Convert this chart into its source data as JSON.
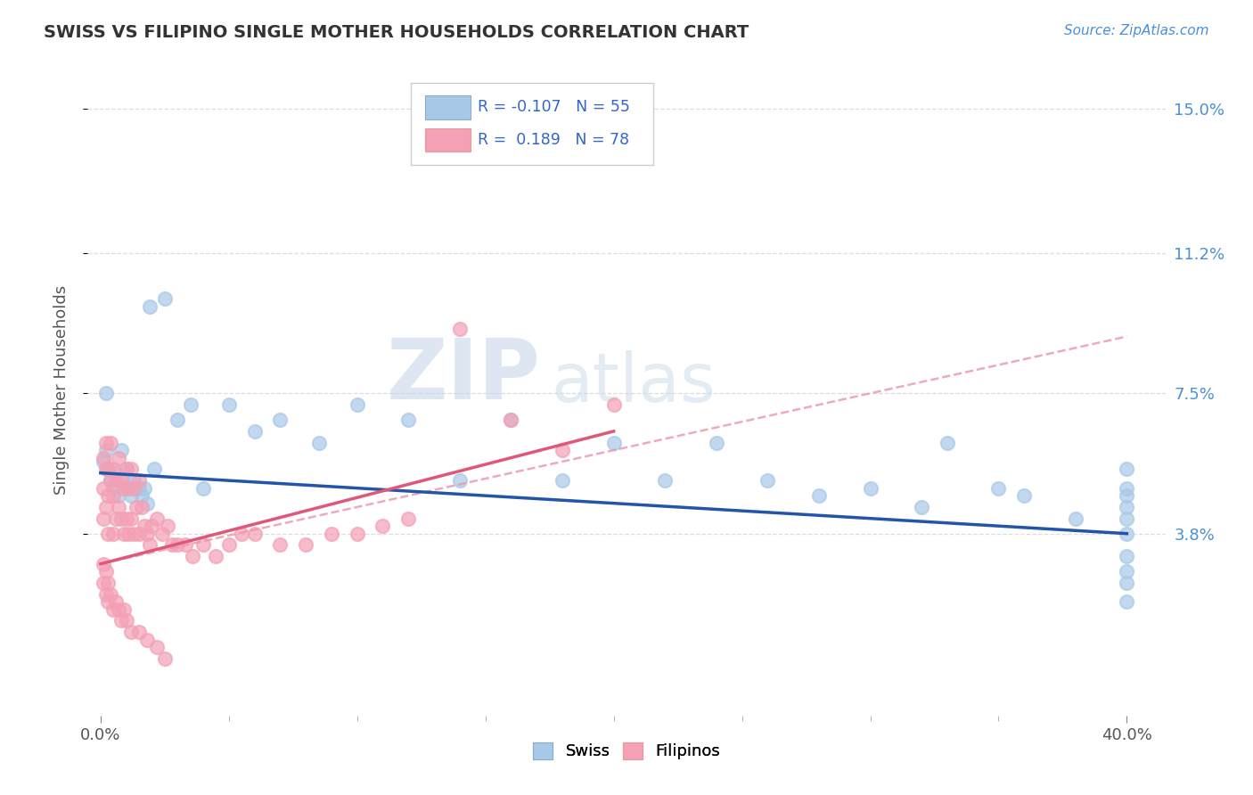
{
  "title": "SWISS VS FILIPINO SINGLE MOTHER HOUSEHOLDS CORRELATION CHART",
  "source": "Source: ZipAtlas.com",
  "ylabel": "Single Mother Households",
  "xlim": [
    -0.005,
    0.415
  ],
  "ylim": [
    -0.01,
    0.162
  ],
  "yticks": [
    0.038,
    0.075,
    0.112,
    0.15
  ],
  "ytick_labels": [
    "3.8%",
    "7.5%",
    "11.2%",
    "15.0%"
  ],
  "xtick_left": 0.0,
  "xtick_right": 0.4,
  "xtick_label_left": "0.0%",
  "xtick_label_right": "40.0%",
  "swiss_color": "#A8C8E8",
  "filipino_color": "#F4A0B5",
  "swiss_line_color": "#2255AA",
  "filipino_line_solid_color": "#E05878",
  "filipino_line_dash_color": "#E896A8",
  "swiss_R": -0.107,
  "swiss_N": 55,
  "filipino_R": 0.189,
  "filipino_N": 78,
  "legend_text_color": "#3366CC",
  "watermark_zip": "ZIP",
  "watermark_atlas": "atlas",
  "background_color": "#FFFFFF",
  "grid_color": "#DDDDDD",
  "swiss_x": [
    0.001,
    0.002,
    0.002,
    0.003,
    0.004,
    0.005,
    0.006,
    0.007,
    0.008,
    0.009,
    0.01,
    0.011,
    0.012,
    0.013,
    0.014,
    0.015,
    0.016,
    0.017,
    0.018,
    0.019,
    0.021,
    0.025,
    0.03,
    0.035,
    0.04,
    0.05,
    0.06,
    0.07,
    0.085,
    0.1,
    0.12,
    0.14,
    0.16,
    0.18,
    0.2,
    0.22,
    0.24,
    0.26,
    0.28,
    0.3,
    0.32,
    0.33,
    0.35,
    0.36,
    0.38,
    0.4,
    0.4,
    0.4,
    0.4,
    0.4,
    0.4,
    0.4,
    0.4,
    0.4,
    0.4
  ],
  "swiss_y": [
    0.057,
    0.075,
    0.06,
    0.055,
    0.052,
    0.05,
    0.054,
    0.048,
    0.06,
    0.052,
    0.055,
    0.05,
    0.048,
    0.052,
    0.05,
    0.05,
    0.048,
    0.05,
    0.046,
    0.098,
    0.055,
    0.1,
    0.068,
    0.072,
    0.05,
    0.072,
    0.065,
    0.068,
    0.062,
    0.072,
    0.068,
    0.052,
    0.068,
    0.052,
    0.062,
    0.052,
    0.062,
    0.052,
    0.048,
    0.05,
    0.045,
    0.062,
    0.05,
    0.048,
    0.042,
    0.02,
    0.025,
    0.028,
    0.032,
    0.038,
    0.042,
    0.045,
    0.048,
    0.05,
    0.055
  ],
  "filipino_x": [
    0.001,
    0.001,
    0.001,
    0.002,
    0.002,
    0.002,
    0.003,
    0.003,
    0.003,
    0.004,
    0.004,
    0.005,
    0.005,
    0.005,
    0.006,
    0.006,
    0.007,
    0.007,
    0.008,
    0.008,
    0.009,
    0.009,
    0.01,
    0.01,
    0.011,
    0.011,
    0.012,
    0.012,
    0.013,
    0.013,
    0.014,
    0.015,
    0.015,
    0.016,
    0.017,
    0.018,
    0.019,
    0.02,
    0.022,
    0.024,
    0.026,
    0.028,
    0.03,
    0.033,
    0.036,
    0.04,
    0.045,
    0.05,
    0.055,
    0.06,
    0.07,
    0.08,
    0.09,
    0.1,
    0.11,
    0.12,
    0.14,
    0.16,
    0.18,
    0.2,
    0.001,
    0.001,
    0.002,
    0.002,
    0.003,
    0.003,
    0.004,
    0.005,
    0.006,
    0.007,
    0.008,
    0.009,
    0.01,
    0.012,
    0.015,
    0.018,
    0.022,
    0.025
  ],
  "filipino_y": [
    0.058,
    0.05,
    0.042,
    0.062,
    0.055,
    0.045,
    0.055,
    0.048,
    0.038,
    0.062,
    0.052,
    0.055,
    0.048,
    0.038,
    0.052,
    0.042,
    0.058,
    0.045,
    0.052,
    0.042,
    0.05,
    0.038,
    0.055,
    0.042,
    0.05,
    0.038,
    0.055,
    0.042,
    0.05,
    0.038,
    0.045,
    0.052,
    0.038,
    0.045,
    0.04,
    0.038,
    0.035,
    0.04,
    0.042,
    0.038,
    0.04,
    0.035,
    0.035,
    0.035,
    0.032,
    0.035,
    0.032,
    0.035,
    0.038,
    0.038,
    0.035,
    0.035,
    0.038,
    0.038,
    0.04,
    0.042,
    0.092,
    0.068,
    0.06,
    0.072,
    0.03,
    0.025,
    0.028,
    0.022,
    0.025,
    0.02,
    0.022,
    0.018,
    0.02,
    0.018,
    0.015,
    0.018,
    0.015,
    0.012,
    0.012,
    0.01,
    0.008,
    0.005
  ]
}
